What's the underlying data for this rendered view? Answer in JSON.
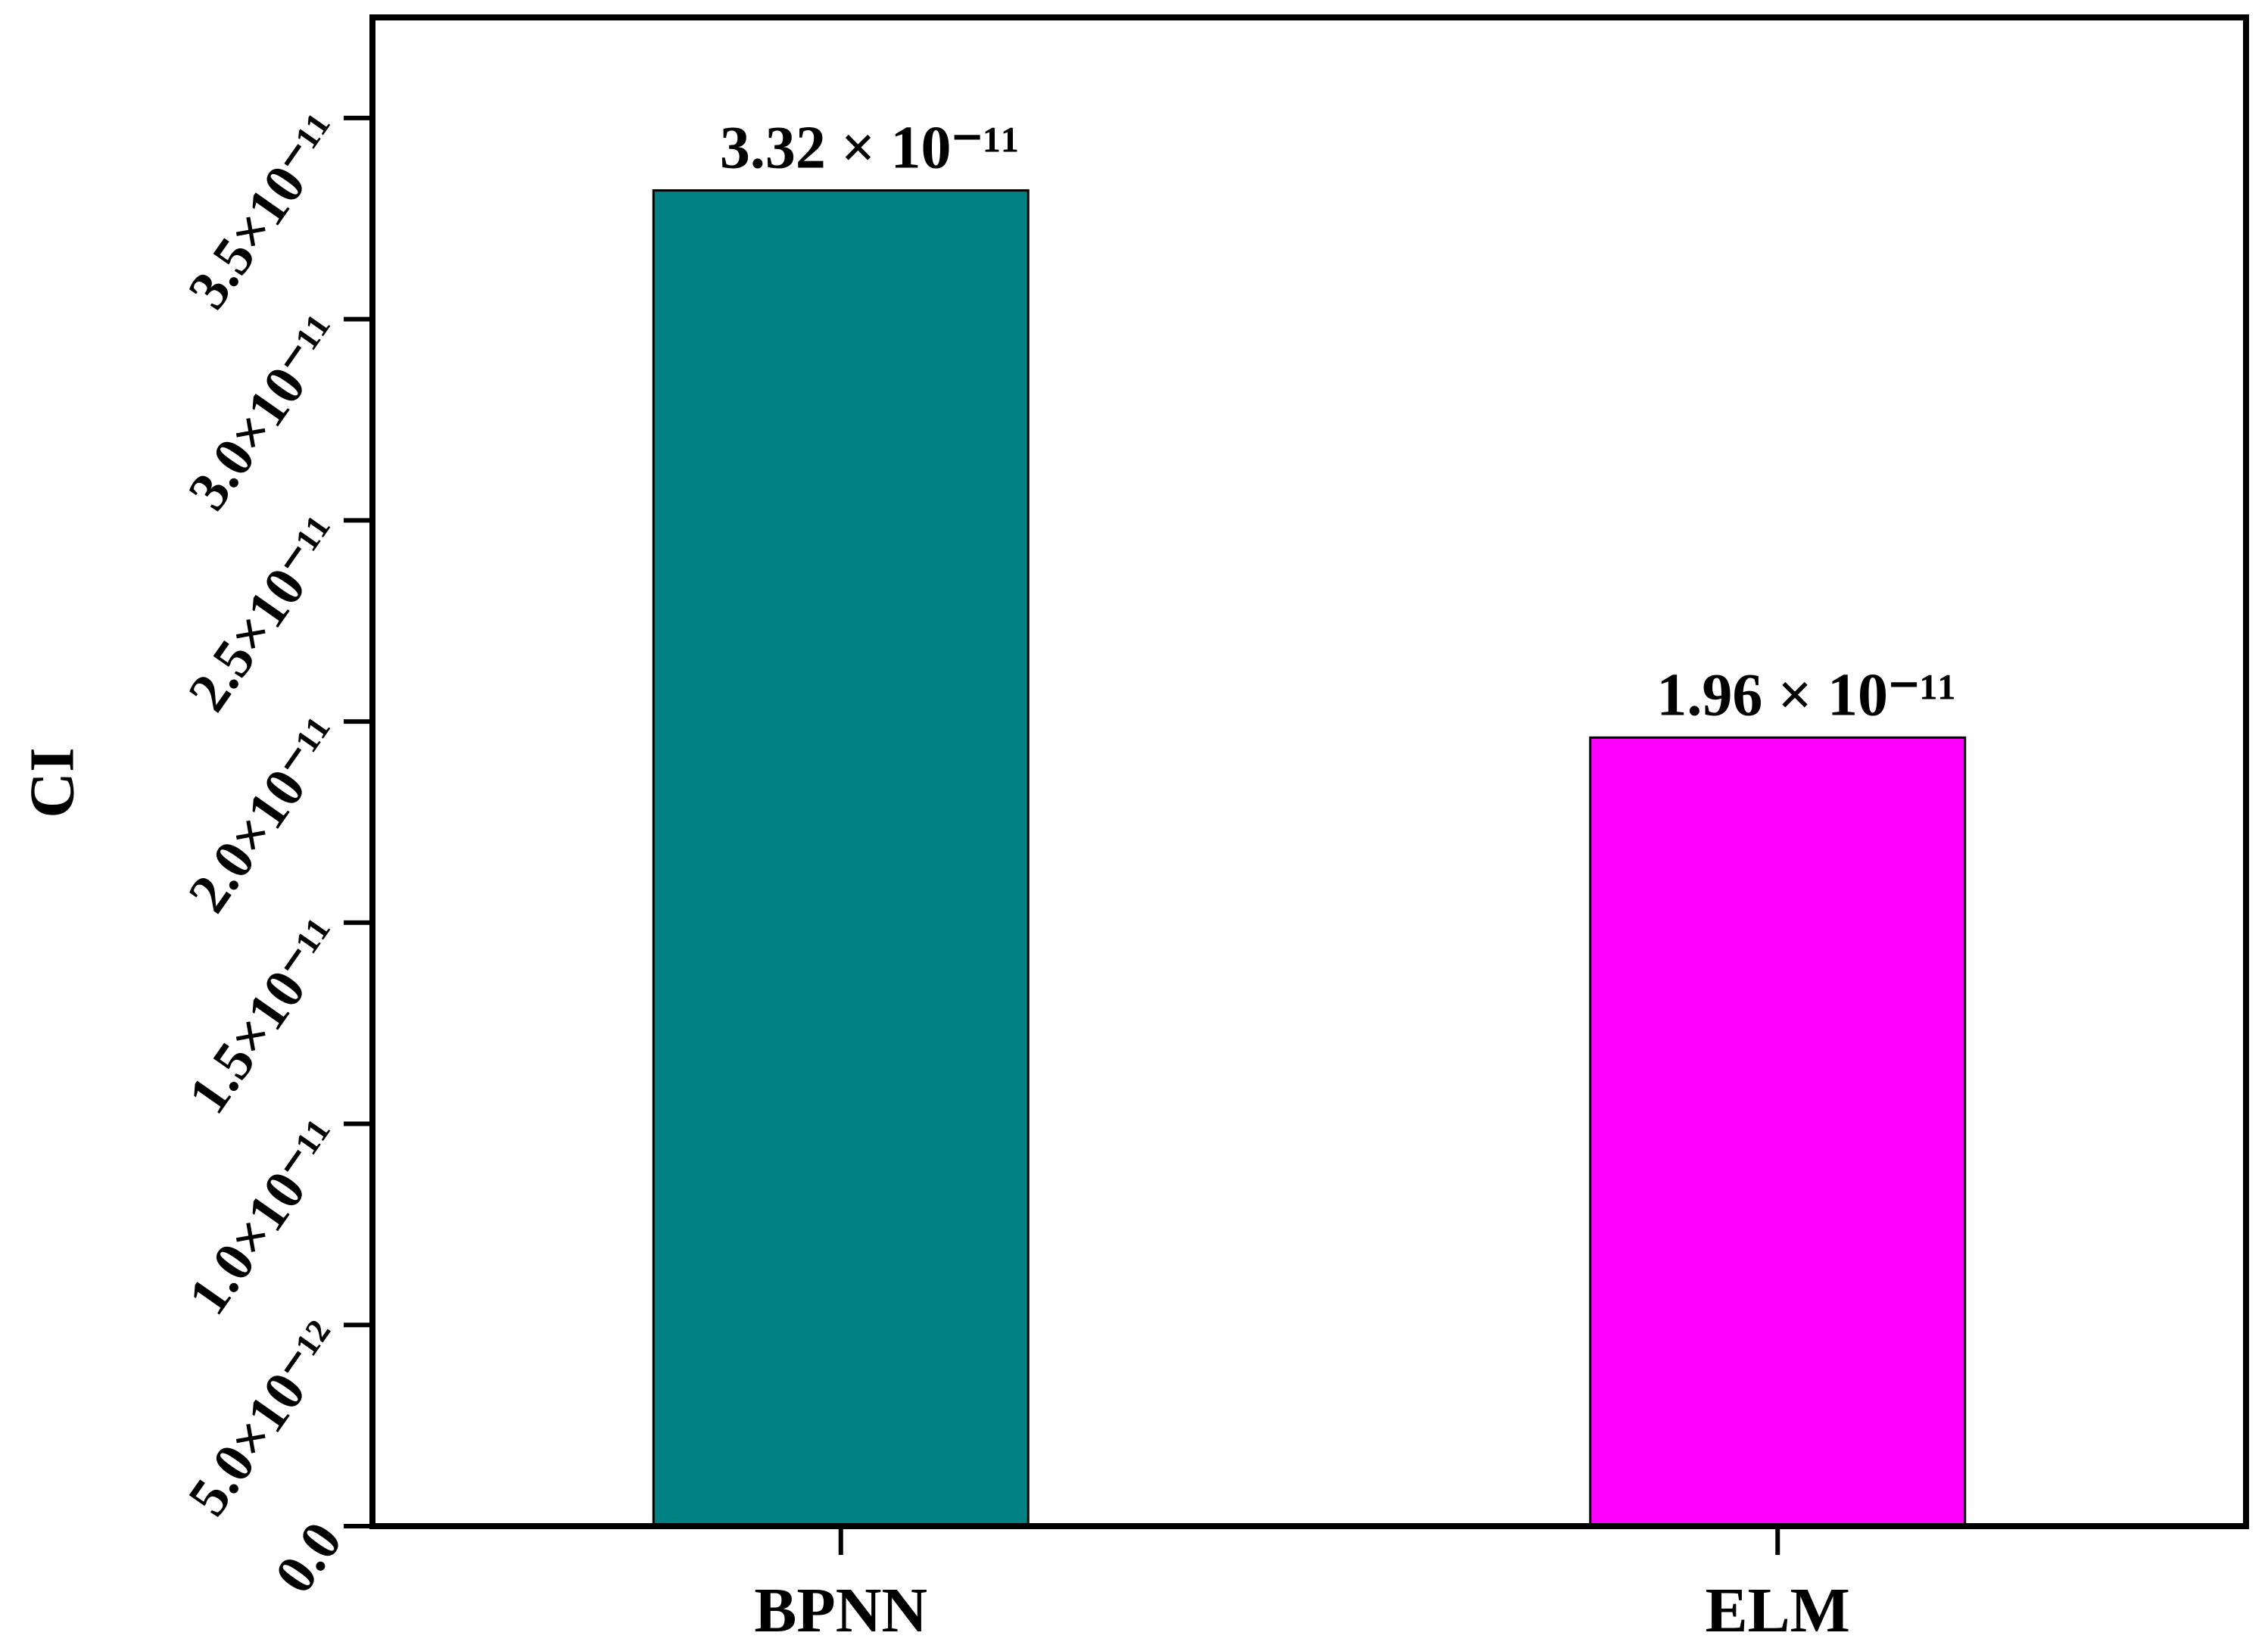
{
  "chart_data": {
    "type": "bar",
    "y_label": "CI",
    "categories": [
      "BPNN",
      "ELM"
    ],
    "values": [
      3.32e-11,
      1.96e-11
    ],
    "value_labels": [
      "3.32 × 10⁻¹¹",
      "1.96 × 10⁻¹¹"
    ],
    "colors": [
      "#008080",
      "#ff00ff"
    ],
    "ylim": [
      0,
      3.75e-11
    ],
    "yticks": [
      {
        "value": 0,
        "label": "0.0"
      },
      {
        "value": 5e-12,
        "label": "5.0×10⁻¹²"
      },
      {
        "value": 1e-11,
        "label": "1.0×10⁻¹¹"
      },
      {
        "value": 1.5e-11,
        "label": "1.5×10⁻¹¹"
      },
      {
        "value": 2e-11,
        "label": "2.0×10⁻¹¹"
      },
      {
        "value": 2.5e-11,
        "label": "2.5×10⁻¹¹"
      },
      {
        "value": 3e-11,
        "label": "3.0×10⁻¹¹"
      },
      {
        "value": 3.5e-11,
        "label": "3.5×10⁻¹¹"
      }
    ],
    "grid": false
  }
}
